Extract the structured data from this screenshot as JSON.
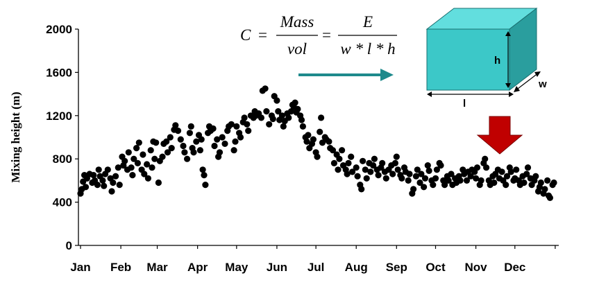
{
  "chart_data": {
    "type": "scatter",
    "title": "",
    "ylabel": "Mixing height (m)",
    "xlabel": "",
    "ylim": [
      0,
      2000
    ],
    "yticks": [
      "0",
      "400",
      "800",
      "1200",
      "1600",
      "2000"
    ],
    "months": [
      "Jan",
      "Feb",
      "Mar",
      "Apr",
      "May",
      "Jun",
      "Jul",
      "Aug",
      "Sep",
      "Oct",
      "Nov",
      "Dec"
    ],
    "marker_color": "#000000",
    "points": [
      {
        "day": 1,
        "value": 480
      },
      {
        "day": 2,
        "value": 520
      },
      {
        "day": 3,
        "value": 590
      },
      {
        "day": 4,
        "value": 650
      },
      {
        "day": 5,
        "value": 540
      },
      {
        "day": 6,
        "value": 620
      },
      {
        "day": 8,
        "value": 660
      },
      {
        "day": 10,
        "value": 580
      },
      {
        "day": 11,
        "value": 650
      },
      {
        "day": 12,
        "value": 600
      },
      {
        "day": 14,
        "value": 560
      },
      {
        "day": 15,
        "value": 700
      },
      {
        "day": 16,
        "value": 640
      },
      {
        "day": 18,
        "value": 600
      },
      {
        "day": 19,
        "value": 550
      },
      {
        "day": 20,
        "value": 660
      },
      {
        "day": 22,
        "value": 700
      },
      {
        "day": 24,
        "value": 620
      },
      {
        "day": 25,
        "value": 500
      },
      {
        "day": 26,
        "value": 580
      },
      {
        "day": 28,
        "value": 640
      },
      {
        "day": 30,
        "value": 720
      },
      {
        "day": 31,
        "value": 560
      },
      {
        "day": 33,
        "value": 820
      },
      {
        "day": 34,
        "value": 740
      },
      {
        "day": 35,
        "value": 780
      },
      {
        "day": 37,
        "value": 700
      },
      {
        "day": 38,
        "value": 860
      },
      {
        "day": 40,
        "value": 720
      },
      {
        "day": 41,
        "value": 650
      },
      {
        "day": 42,
        "value": 800
      },
      {
        "day": 44,
        "value": 900
      },
      {
        "day": 45,
        "value": 760
      },
      {
        "day": 46,
        "value": 950
      },
      {
        "day": 48,
        "value": 700
      },
      {
        "day": 49,
        "value": 840
      },
      {
        "day": 50,
        "value": 660
      },
      {
        "day": 52,
        "value": 750
      },
      {
        "day": 53,
        "value": 620
      },
      {
        "day": 55,
        "value": 880
      },
      {
        "day": 56,
        "value": 720
      },
      {
        "day": 57,
        "value": 960
      },
      {
        "day": 58,
        "value": 800
      },
      {
        "day": 59,
        "value": 950
      },
      {
        "day": 61,
        "value": 580
      },
      {
        "day": 62,
        "value": 780
      },
      {
        "day": 64,
        "value": 820
      },
      {
        "day": 65,
        "value": 940
      },
      {
        "day": 67,
        "value": 960
      },
      {
        "day": 68,
        "value": 860
      },
      {
        "day": 70,
        "value": 1000
      },
      {
        "day": 71,
        "value": 900
      },
      {
        "day": 73,
        "value": 1070
      },
      {
        "day": 74,
        "value": 1110
      },
      {
        "day": 76,
        "value": 1060
      },
      {
        "day": 78,
        "value": 980
      },
      {
        "day": 80,
        "value": 920
      },
      {
        "day": 81,
        "value": 860
      },
      {
        "day": 83,
        "value": 800
      },
      {
        "day": 85,
        "value": 1040
      },
      {
        "day": 86,
        "value": 1100
      },
      {
        "day": 87,
        "value": 900
      },
      {
        "day": 88,
        "value": 860
      },
      {
        "day": 90,
        "value": 960
      },
      {
        "day": 92,
        "value": 1020
      },
      {
        "day": 93,
        "value": 880
      },
      {
        "day": 94,
        "value": 980
      },
      {
        "day": 95,
        "value": 700
      },
      {
        "day": 96,
        "value": 650
      },
      {
        "day": 97,
        "value": 560
      },
      {
        "day": 99,
        "value": 1040
      },
      {
        "day": 100,
        "value": 1100
      },
      {
        "day": 101,
        "value": 1060
      },
      {
        "day": 103,
        "value": 1080
      },
      {
        "day": 104,
        "value": 920
      },
      {
        "day": 106,
        "value": 980
      },
      {
        "day": 107,
        "value": 820
      },
      {
        "day": 108,
        "value": 860
      },
      {
        "day": 110,
        "value": 1000
      },
      {
        "day": 112,
        "value": 940
      },
      {
        "day": 114,
        "value": 1060
      },
      {
        "day": 115,
        "value": 1100
      },
      {
        "day": 117,
        "value": 1120
      },
      {
        "day": 119,
        "value": 880
      },
      {
        "day": 120,
        "value": 960
      },
      {
        "day": 121,
        "value": 1100
      },
      {
        "day": 123,
        "value": 1040
      },
      {
        "day": 124,
        "value": 1000
      },
      {
        "day": 126,
        "value": 1140
      },
      {
        "day": 127,
        "value": 1180
      },
      {
        "day": 129,
        "value": 1120
      },
      {
        "day": 130,
        "value": 1060
      },
      {
        "day": 132,
        "value": 1200
      },
      {
        "day": 134,
        "value": 1180
      },
      {
        "day": 135,
        "value": 1240
      },
      {
        "day": 136,
        "value": 1200
      },
      {
        "day": 138,
        "value": 1220
      },
      {
        "day": 140,
        "value": 1180
      },
      {
        "day": 141,
        "value": 1430
      },
      {
        "day": 143,
        "value": 1450
      },
      {
        "day": 144,
        "value": 1240
      },
      {
        "day": 146,
        "value": 1120
      },
      {
        "day": 148,
        "value": 1200
      },
      {
        "day": 149,
        "value": 1170
      },
      {
        "day": 150,
        "value": 1380
      },
      {
        "day": 152,
        "value": 1340
      },
      {
        "day": 153,
        "value": 1240
      },
      {
        "day": 154,
        "value": 1160
      },
      {
        "day": 156,
        "value": 1200
      },
      {
        "day": 157,
        "value": 1100
      },
      {
        "day": 158,
        "value": 1150
      },
      {
        "day": 160,
        "value": 1220
      },
      {
        "day": 161,
        "value": 1180
      },
      {
        "day": 163,
        "value": 1240
      },
      {
        "day": 164,
        "value": 1300
      },
      {
        "day": 165,
        "value": 1280
      },
      {
        "day": 166,
        "value": 1320
      },
      {
        "day": 167,
        "value": 1230
      },
      {
        "day": 168,
        "value": 1260
      },
      {
        "day": 170,
        "value": 1200
      },
      {
        "day": 171,
        "value": 1160
      },
      {
        "day": 172,
        "value": 1100
      },
      {
        "day": 174,
        "value": 1000
      },
      {
        "day": 175,
        "value": 960
      },
      {
        "day": 176,
        "value": 1020
      },
      {
        "day": 177,
        "value": 900
      },
      {
        "day": 179,
        "value": 940
      },
      {
        "day": 180,
        "value": 980
      },
      {
        "day": 182,
        "value": 860
      },
      {
        "day": 183,
        "value": 820
      },
      {
        "day": 185,
        "value": 1050
      },
      {
        "day": 186,
        "value": 1180
      },
      {
        "day": 187,
        "value": 950
      },
      {
        "day": 189,
        "value": 1000
      },
      {
        "day": 190,
        "value": 980
      },
      {
        "day": 192,
        "value": 960
      },
      {
        "day": 193,
        "value": 900
      },
      {
        "day": 195,
        "value": 880
      },
      {
        "day": 196,
        "value": 760
      },
      {
        "day": 198,
        "value": 840
      },
      {
        "day": 199,
        "value": 700
      },
      {
        "day": 200,
        "value": 800
      },
      {
        "day": 202,
        "value": 880
      },
      {
        "day": 203,
        "value": 740
      },
      {
        "day": 205,
        "value": 700
      },
      {
        "day": 206,
        "value": 660
      },
      {
        "day": 207,
        "value": 760
      },
      {
        "day": 209,
        "value": 820
      },
      {
        "day": 210,
        "value": 680
      },
      {
        "day": 213,
        "value": 720
      },
      {
        "day": 214,
        "value": 640
      },
      {
        "day": 216,
        "value": 560
      },
      {
        "day": 217,
        "value": 520
      },
      {
        "day": 218,
        "value": 780
      },
      {
        "day": 220,
        "value": 700
      },
      {
        "day": 221,
        "value": 620
      },
      {
        "day": 223,
        "value": 760
      },
      {
        "day": 224,
        "value": 680
      },
      {
        "day": 226,
        "value": 740
      },
      {
        "day": 227,
        "value": 800
      },
      {
        "day": 229,
        "value": 700
      },
      {
        "day": 230,
        "value": 650
      },
      {
        "day": 232,
        "value": 720
      },
      {
        "day": 233,
        "value": 760
      },
      {
        "day": 235,
        "value": 680
      },
      {
        "day": 236,
        "value": 620
      },
      {
        "day": 238,
        "value": 700
      },
      {
        "day": 240,
        "value": 740
      },
      {
        "day": 241,
        "value": 660
      },
      {
        "day": 243,
        "value": 760
      },
      {
        "day": 244,
        "value": 820
      },
      {
        "day": 245,
        "value": 700
      },
      {
        "day": 247,
        "value": 650
      },
      {
        "day": 248,
        "value": 620
      },
      {
        "day": 250,
        "value": 720
      },
      {
        "day": 251,
        "value": 680
      },
      {
        "day": 253,
        "value": 600
      },
      {
        "day": 254,
        "value": 660
      },
      {
        "day": 256,
        "value": 480
      },
      {
        "day": 257,
        "value": 520
      },
      {
        "day": 259,
        "value": 640
      },
      {
        "day": 260,
        "value": 700
      },
      {
        "day": 262,
        "value": 580
      },
      {
        "day": 263,
        "value": 660
      },
      {
        "day": 265,
        "value": 540
      },
      {
        "day": 266,
        "value": 620
      },
      {
        "day": 268,
        "value": 740
      },
      {
        "day": 269,
        "value": 690
      },
      {
        "day": 271,
        "value": 600
      },
      {
        "day": 272,
        "value": 560
      },
      {
        "day": 274,
        "value": 620
      },
      {
        "day": 275,
        "value": 700
      },
      {
        "day": 277,
        "value": 760
      },
      {
        "day": 278,
        "value": 740
      },
      {
        "day": 280,
        "value": 600
      },
      {
        "day": 281,
        "value": 560
      },
      {
        "day": 283,
        "value": 640
      },
      {
        "day": 284,
        "value": 600
      },
      {
        "day": 286,
        "value": 660
      },
      {
        "day": 287,
        "value": 560
      },
      {
        "day": 289,
        "value": 620
      },
      {
        "day": 290,
        "value": 580
      },
      {
        "day": 292,
        "value": 640
      },
      {
        "day": 293,
        "value": 600
      },
      {
        "day": 295,
        "value": 700
      },
      {
        "day": 296,
        "value": 660
      },
      {
        "day": 298,
        "value": 600
      },
      {
        "day": 299,
        "value": 680
      },
      {
        "day": 301,
        "value": 640
      },
      {
        "day": 302,
        "value": 700
      },
      {
        "day": 304,
        "value": 680
      },
      {
        "day": 305,
        "value": 620
      },
      {
        "day": 306,
        "value": 720
      },
      {
        "day": 308,
        "value": 560
      },
      {
        "day": 309,
        "value": 600
      },
      {
        "day": 311,
        "value": 760
      },
      {
        "day": 312,
        "value": 800
      },
      {
        "day": 313,
        "value": 720
      },
      {
        "day": 315,
        "value": 600
      },
      {
        "day": 316,
        "value": 560
      },
      {
        "day": 318,
        "value": 640
      },
      {
        "day": 319,
        "value": 580
      },
      {
        "day": 320,
        "value": 660
      },
      {
        "day": 322,
        "value": 700
      },
      {
        "day": 323,
        "value": 620
      },
      {
        "day": 325,
        "value": 680
      },
      {
        "day": 326,
        "value": 600
      },
      {
        "day": 328,
        "value": 560
      },
      {
        "day": 329,
        "value": 640
      },
      {
        "day": 331,
        "value": 720
      },
      {
        "day": 332,
        "value": 680
      },
      {
        "day": 334,
        "value": 600
      },
      {
        "day": 335,
        "value": 620
      },
      {
        "day": 336,
        "value": 700
      },
      {
        "day": 338,
        "value": 600
      },
      {
        "day": 339,
        "value": 560
      },
      {
        "day": 341,
        "value": 640
      },
      {
        "day": 342,
        "value": 580
      },
      {
        "day": 344,
        "value": 660
      },
      {
        "day": 345,
        "value": 720
      },
      {
        "day": 347,
        "value": 620
      },
      {
        "day": 348,
        "value": 560
      },
      {
        "day": 350,
        "value": 600
      },
      {
        "day": 351,
        "value": 640
      },
      {
        "day": 353,
        "value": 500
      },
      {
        "day": 354,
        "value": 540
      },
      {
        "day": 355,
        "value": 580
      },
      {
        "day": 357,
        "value": 480
      },
      {
        "day": 358,
        "value": 520
      },
      {
        "day": 360,
        "value": 600
      },
      {
        "day": 361,
        "value": 460
      },
      {
        "day": 362,
        "value": 440
      },
      {
        "day": 364,
        "value": 560
      },
      {
        "day": 365,
        "value": 580
      }
    ]
  },
  "equation": {
    "lhs": "C",
    "eq": "=",
    "frac1_num": "Mass",
    "frac1_den": "vol",
    "frac2_num": "E",
    "frac2_den": "w * l * h"
  },
  "box": {
    "face_color": "#3cc8c8",
    "top_color": "#62dede",
    "side_color": "#2a9e9e",
    "label_h": "h",
    "label_w": "w",
    "label_l": "l"
  },
  "colors": {
    "teal_arrow": "#1e8a8c",
    "red_arrow": "#c00000"
  }
}
